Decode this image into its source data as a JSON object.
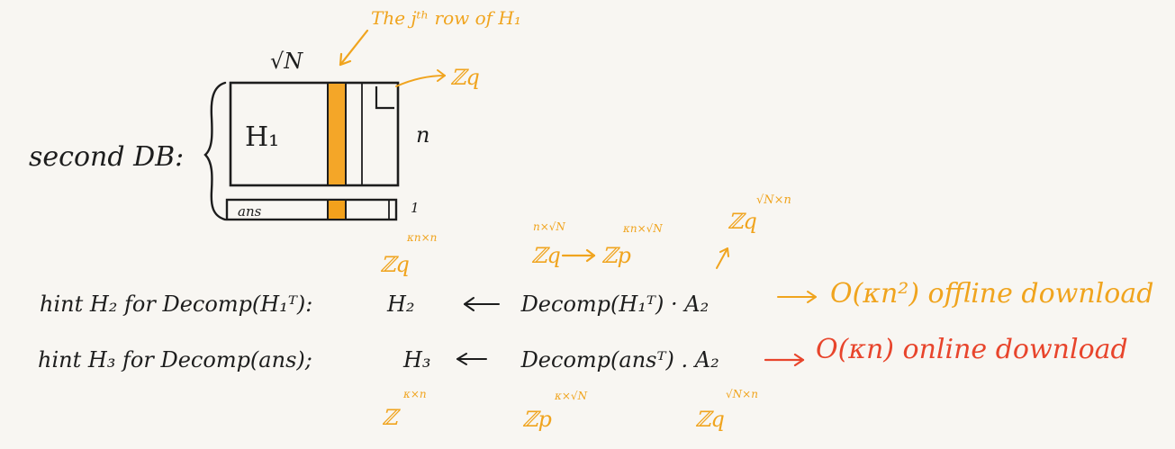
{
  "colors": {
    "ink": "#1d1d1d",
    "accent": "#f0a41e",
    "highlight": "#e8452c"
  },
  "diagram": {
    "db_label": "second DB:",
    "top_width": "√N",
    "matrix_h1": "H₁",
    "rows_n": "n",
    "ans_label": "ans",
    "ans_rows": "1",
    "jth_row_annotation": "The jᵗʰ row of H₁",
    "zq_pointer": "ℤq",
    "ans_field": {
      "base": "ℤq",
      "exp": "κn×n"
    }
  },
  "hint_lines": [
    {
      "prefix": "hint  H₂ for Decomp(H₁ᵀ):",
      "formula": "H₂ ← Decomp(H₁ᵀ) · A₂",
      "cost": "O(κn²) offline download"
    },
    {
      "prefix": "hint  H₃ for Decomp(ans);",
      "formula": "H₃ ← Decomp(ansᵀ) . A₂",
      "cost": "O(κn) online download"
    }
  ],
  "field_annotations": {
    "first_line": [
      {
        "base": "ℤq",
        "exp": "n×√N"
      },
      {
        "base": "ℤp",
        "exp": "κn×√N"
      },
      {
        "base": "ℤq",
        "exp": "√N×n"
      }
    ],
    "second_line": [
      {
        "base": "ℤ",
        "exp": "κ×n"
      },
      {
        "base": "ℤp",
        "exp": "κ×√N"
      },
      {
        "base": "ℤq",
        "exp": "√N×n"
      }
    ]
  }
}
